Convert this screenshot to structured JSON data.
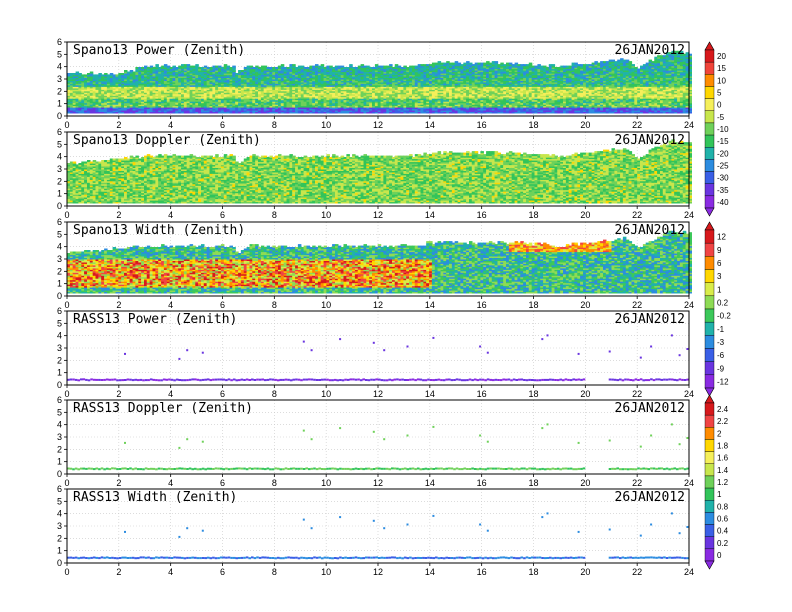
{
  "figure": {
    "x_ticks": [
      "0",
      "2",
      "4",
      "6",
      "8",
      "10",
      "12",
      "14",
      "16",
      "18",
      "20",
      "22",
      "24"
    ],
    "y_ticks": [
      "0",
      "1",
      "2",
      "3",
      "4",
      "5",
      "6"
    ]
  },
  "colorbars": [
    {
      "labels": [
        "20",
        "15",
        "10",
        "5",
        "0",
        "-5",
        "-10",
        "-15",
        "-20",
        "-25",
        "-30",
        "-35",
        "-40"
      ],
      "colors": [
        "#d7191c",
        "#f0443a",
        "#ff8c00",
        "#ffd700",
        "#f5ef5a",
        "#c8e64c",
        "#6fd15a",
        "#32c45a",
        "#20b2aa",
        "#2c8ce0",
        "#3a5fe6",
        "#6a35e0",
        "#8a2be2"
      ]
    },
    {
      "labels": [
        "12",
        "9",
        "6",
        "3",
        "1",
        "0.2",
        "-0.2",
        "-1",
        "-3",
        "-6",
        "-9",
        "-12"
      ],
      "colors": [
        "#d7191c",
        "#f04444",
        "#ff8c00",
        "#ffd700",
        "#d9ec4a",
        "#8edb55",
        "#3cc85a",
        "#20b2aa",
        "#2c8ce0",
        "#3a5fe6",
        "#6a35e0",
        "#8a2be2"
      ]
    },
    {
      "labels": [
        "2.4",
        "2.2",
        "2",
        "1.8",
        "1.6",
        "1.4",
        "1.2",
        "1",
        "0.8",
        "0.6",
        "0.4",
        "0.2",
        "0"
      ],
      "colors": [
        "#d7191c",
        "#f04444",
        "#ff8c00",
        "#ffd700",
        "#f5ef5a",
        "#c8e64c",
        "#6fd15a",
        "#32c45a",
        "#20b2aa",
        "#2c8ce0",
        "#3a5fe6",
        "#6a35e0",
        "#8a2be2"
      ]
    }
  ],
  "chart_data": [
    {
      "type": "heatmap",
      "title": "Spano13 Power (Zenith)",
      "date": "26JAN2012",
      "xlim": [
        0,
        24
      ],
      "ylim": [
        0,
        6
      ],
      "colorbar": 0,
      "description_top_km": [
        [
          0,
          3.4
        ],
        [
          2,
          3.4
        ],
        [
          3,
          4.0
        ],
        [
          6.4,
          4.0
        ],
        [
          6.5,
          3.4
        ],
        [
          7,
          4.0
        ],
        [
          13.4,
          4.0
        ],
        [
          14,
          4.3
        ],
        [
          17,
          4.3
        ],
        [
          19,
          4.0
        ],
        [
          20.6,
          4.4
        ],
        [
          21.5,
          4.6
        ],
        [
          22,
          3.8
        ],
        [
          22.6,
          4.6
        ],
        [
          23.3,
          5.2
        ],
        [
          24,
          5.0
        ]
      ],
      "band_height_km": 1.8
    },
    {
      "type": "heatmap",
      "title": "Spano13 Doppler (Zenith)",
      "date": "26JAN2012",
      "xlim": [
        0,
        24
      ],
      "ylim": [
        0,
        6
      ],
      "colorbar": 0,
      "description_top_km": [
        [
          0,
          3.4
        ],
        [
          3,
          4.0
        ],
        [
          6.4,
          4.0
        ],
        [
          6.5,
          3.4
        ],
        [
          7,
          4.0
        ],
        [
          13.4,
          4.0
        ],
        [
          14,
          4.3
        ],
        [
          17,
          4.3
        ],
        [
          19,
          4.0
        ],
        [
          20.6,
          4.4
        ],
        [
          21.5,
          4.6
        ],
        [
          22,
          3.8
        ],
        [
          22.6,
          4.6
        ],
        [
          23.3,
          5.2
        ],
        [
          24,
          5.0
        ]
      ],
      "band_height_km": 1.5
    },
    {
      "type": "heatmap",
      "title": "Spano13 Width (Zenith)",
      "date": "26JAN2012",
      "xlim": [
        0,
        24
      ],
      "ylim": [
        0,
        6
      ],
      "colorbar": 1,
      "description_top_km": [
        [
          0,
          3.4
        ],
        [
          3,
          4.0
        ],
        [
          6.4,
          4.0
        ],
        [
          6.5,
          3.4
        ],
        [
          7,
          4.0
        ],
        [
          13.4,
          4.0
        ],
        [
          14,
          4.3
        ],
        [
          17,
          4.3
        ],
        [
          19,
          4.0
        ],
        [
          20.6,
          4.4
        ],
        [
          21.5,
          4.6
        ],
        [
          22,
          3.8
        ],
        [
          22.6,
          4.6
        ],
        [
          23.3,
          5.2
        ],
        [
          24,
          5.0
        ]
      ],
      "band_height_km": 2.0
    },
    {
      "type": "scatter",
      "title": "RASS13 Power (Zenith)",
      "date": "26JAN2012",
      "xlim": [
        0,
        24
      ],
      "ylim": [
        0,
        6
      ],
      "colorbar": 1,
      "layer_km": 0.5,
      "points": [
        [
          2.2,
          2.6
        ],
        [
          4.3,
          2.2
        ],
        [
          4.6,
          2.9
        ],
        [
          5.2,
          2.7
        ],
        [
          9.1,
          3.6
        ],
        [
          9.4,
          2.9
        ],
        [
          10.5,
          3.8
        ],
        [
          11.8,
          3.5
        ],
        [
          12.2,
          2.9
        ],
        [
          13.1,
          3.2
        ],
        [
          14.1,
          3.9
        ],
        [
          15.9,
          3.2
        ],
        [
          16.2,
          2.7
        ],
        [
          18.3,
          3.8
        ],
        [
          18.5,
          4.1
        ],
        [
          19.7,
          2.6
        ],
        [
          20.9,
          2.8
        ],
        [
          22.1,
          2.3
        ],
        [
          22.5,
          3.2
        ],
        [
          23.3,
          4.1
        ],
        [
          23.6,
          2.5
        ],
        [
          23.9,
          3.0
        ]
      ]
    },
    {
      "type": "scatter",
      "title": "RASS13 Doppler (Zenith)",
      "date": "26JAN2012",
      "xlim": [
        0,
        24
      ],
      "ylim": [
        0,
        6
      ],
      "colorbar": 2,
      "layer_km": 0.5,
      "points": [
        [
          2.2,
          2.6
        ],
        [
          4.3,
          2.2
        ],
        [
          4.6,
          2.9
        ],
        [
          5.2,
          2.7
        ],
        [
          9.1,
          3.6
        ],
        [
          9.4,
          2.9
        ],
        [
          10.5,
          3.8
        ],
        [
          11.8,
          3.5
        ],
        [
          12.2,
          2.9
        ],
        [
          13.1,
          3.2
        ],
        [
          14.1,
          3.9
        ],
        [
          15.9,
          3.2
        ],
        [
          16.2,
          2.7
        ],
        [
          18.3,
          3.8
        ],
        [
          18.5,
          4.1
        ],
        [
          19.7,
          2.6
        ],
        [
          20.9,
          2.8
        ],
        [
          22.1,
          2.3
        ],
        [
          22.5,
          3.2
        ],
        [
          23.3,
          4.1
        ],
        [
          23.6,
          2.5
        ],
        [
          23.9,
          3.0
        ]
      ]
    },
    {
      "type": "scatter",
      "title": "RASS13 Width (Zenith)",
      "date": "26JAN2012",
      "xlim": [
        0,
        24
      ],
      "ylim": [
        0,
        6
      ],
      "colorbar": 1,
      "layer_km": 0.5,
      "points": [
        [
          2.2,
          2.6
        ],
        [
          4.3,
          2.2
        ],
        [
          4.6,
          2.9
        ],
        [
          5.2,
          2.7
        ],
        [
          9.1,
          3.6
        ],
        [
          9.4,
          2.9
        ],
        [
          10.5,
          3.8
        ],
        [
          11.8,
          3.5
        ],
        [
          12.2,
          2.9
        ],
        [
          13.1,
          3.2
        ],
        [
          14.1,
          3.9
        ],
        [
          15.9,
          3.2
        ],
        [
          16.2,
          2.7
        ],
        [
          18.3,
          3.8
        ],
        [
          18.5,
          4.1
        ],
        [
          19.7,
          2.6
        ],
        [
          20.9,
          2.8
        ],
        [
          22.1,
          2.3
        ],
        [
          22.5,
          3.2
        ],
        [
          23.3,
          4.1
        ],
        [
          23.6,
          2.5
        ],
        [
          23.9,
          3.0
        ]
      ]
    }
  ]
}
